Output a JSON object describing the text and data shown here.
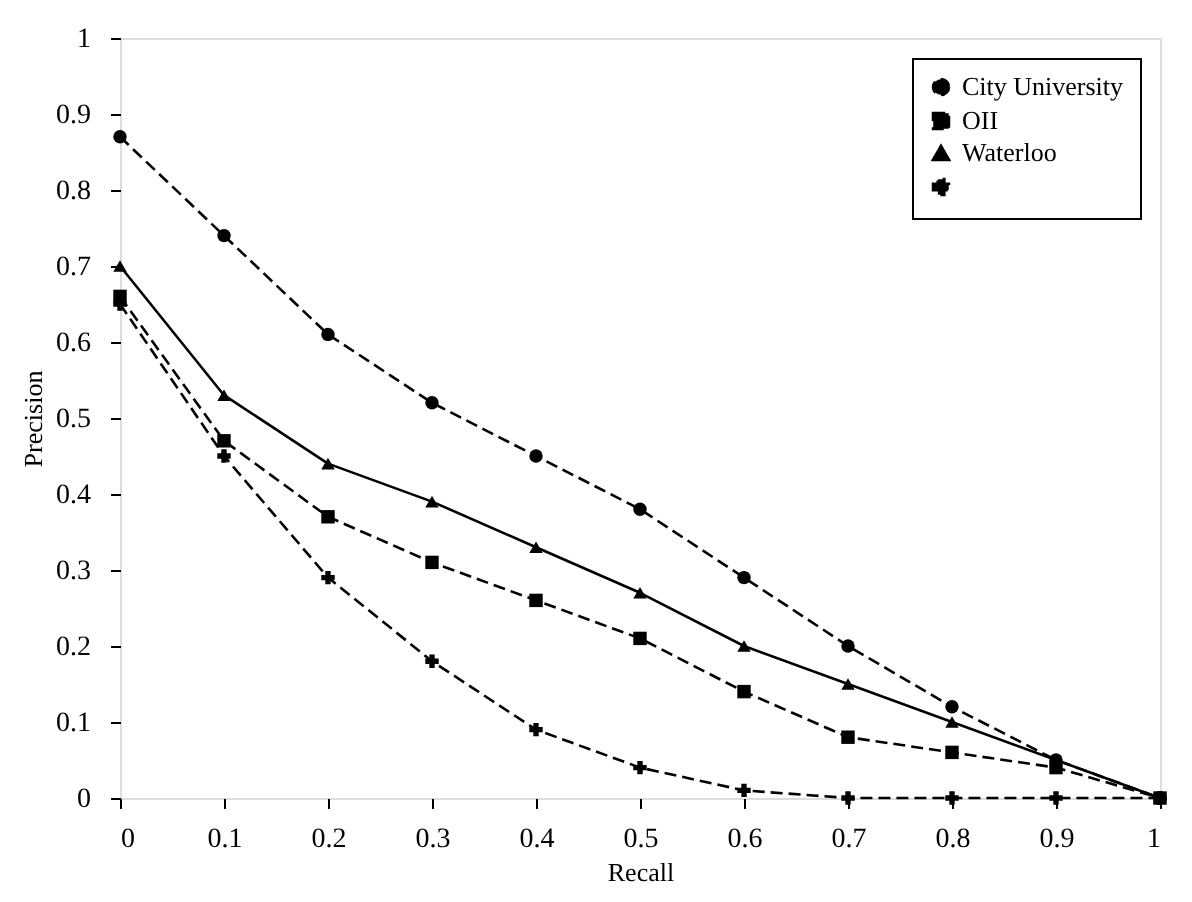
{
  "chart_data": {
    "type": "line",
    "xlabel": "Recall",
    "ylabel": "Precision",
    "x": [
      0,
      0.1,
      0.2,
      0.3,
      0.4,
      0.5,
      0.6,
      0.7,
      0.8,
      0.9,
      1
    ],
    "xlim": [
      0,
      1
    ],
    "xticks": [
      0,
      0.1,
      0.2,
      0.3,
      0.4,
      0.5,
      0.6,
      0.7,
      0.8,
      0.9,
      1
    ],
    "ylim": [
      0,
      1
    ],
    "yticks": [
      0,
      0.1,
      0.2,
      0.3,
      0.4,
      0.5,
      0.6,
      0.7,
      0.8,
      0.9,
      1
    ],
    "grid": false,
    "legend": "top right",
    "series": [
      {
        "name": "City University",
        "color": "#000000",
        "marker": "circle",
        "line_style": "dashed",
        "values": [
          0.87,
          0.74,
          0.61,
          0.52,
          0.45,
          0.38,
          0.29,
          0.2,
          0.12,
          0.05,
          0
        ]
      },
      {
        "name": "OII",
        "color": "#000000",
        "marker": "square",
        "line_style": "dashed",
        "values": [
          0.66,
          0.47,
          0.37,
          0.31,
          0.26,
          0.21,
          0.14,
          0.08,
          0.06,
          0.04,
          0
        ]
      },
      {
        "name": "Waterloo",
        "color": "#000000",
        "marker": "triangle",
        "line_style": "solid",
        "values": [
          0.7,
          0.53,
          0.44,
          0.39,
          0.33,
          0.27,
          0.2,
          0.15,
          0.1,
          0.05,
          0
        ]
      },
      {
        "color": "#000000",
        "marker": "cross",
        "line_style": "dashed",
        "values": [
          0.65,
          0.45,
          0.29,
          0.18,
          0.09,
          0.04,
          0.01,
          0,
          0,
          0,
          0
        ]
      }
    ]
  }
}
